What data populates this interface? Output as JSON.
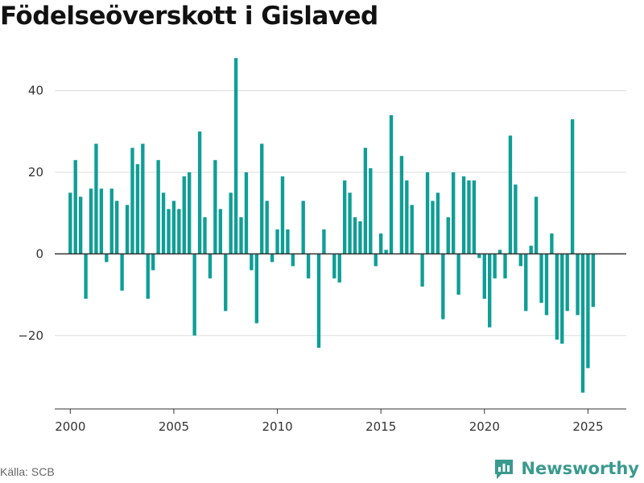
{
  "title": "Födelseöverskott i Gislaved",
  "source": "Källa: SCB",
  "brand": {
    "name": "Newsworthy",
    "icon": "newsworthy-logo-icon",
    "color": "#3a9a8e"
  },
  "colors": {
    "bar": "#0f9e96",
    "grid": "#dddddd",
    "zero": "#333333",
    "axis": "#333333"
  },
  "chart_data": {
    "type": "bar",
    "title": "Födelseöverskott i Gislaved",
    "xlabel": "",
    "ylabel": "",
    "x_ticks": [
      2000,
      2005,
      2010,
      2015,
      2020,
      2025
    ],
    "y_ticks": [
      -20,
      0,
      20,
      40
    ],
    "ylim": [
      -38,
      50
    ],
    "xlim": [
      1999.25,
      2026.85
    ],
    "grid": true,
    "start": [
      2000,
      1
    ],
    "frequency": "quarterly",
    "values": [
      15,
      23,
      14,
      -11,
      16,
      27,
      16,
      -2,
      16,
      13,
      -9,
      12,
      26,
      22,
      27,
      -11,
      -4,
      23,
      15,
      11,
      13,
      11,
      19,
      20,
      -20,
      30,
      9,
      -6,
      23,
      11,
      -14,
      15,
      48,
      9,
      20,
      -4,
      -17,
      27,
      13,
      -2,
      6,
      19,
      6,
      -3,
      0,
      13,
      -6,
      0,
      -23,
      6,
      0,
      -6,
      -7,
      18,
      15,
      9,
      8,
      26,
      21,
      -3,
      5,
      1,
      34,
      0,
      24,
      18,
      12,
      0,
      -8,
      20,
      13,
      15,
      -16,
      9,
      20,
      -10,
      19,
      18,
      18,
      -1,
      -11,
      -18,
      -6,
      1,
      -6,
      29,
      17,
      -3,
      -14,
      2,
      14,
      -12,
      -15,
      5,
      -21,
      -22,
      -14,
      33,
      -15,
      -34,
      -28,
      -13
    ]
  }
}
